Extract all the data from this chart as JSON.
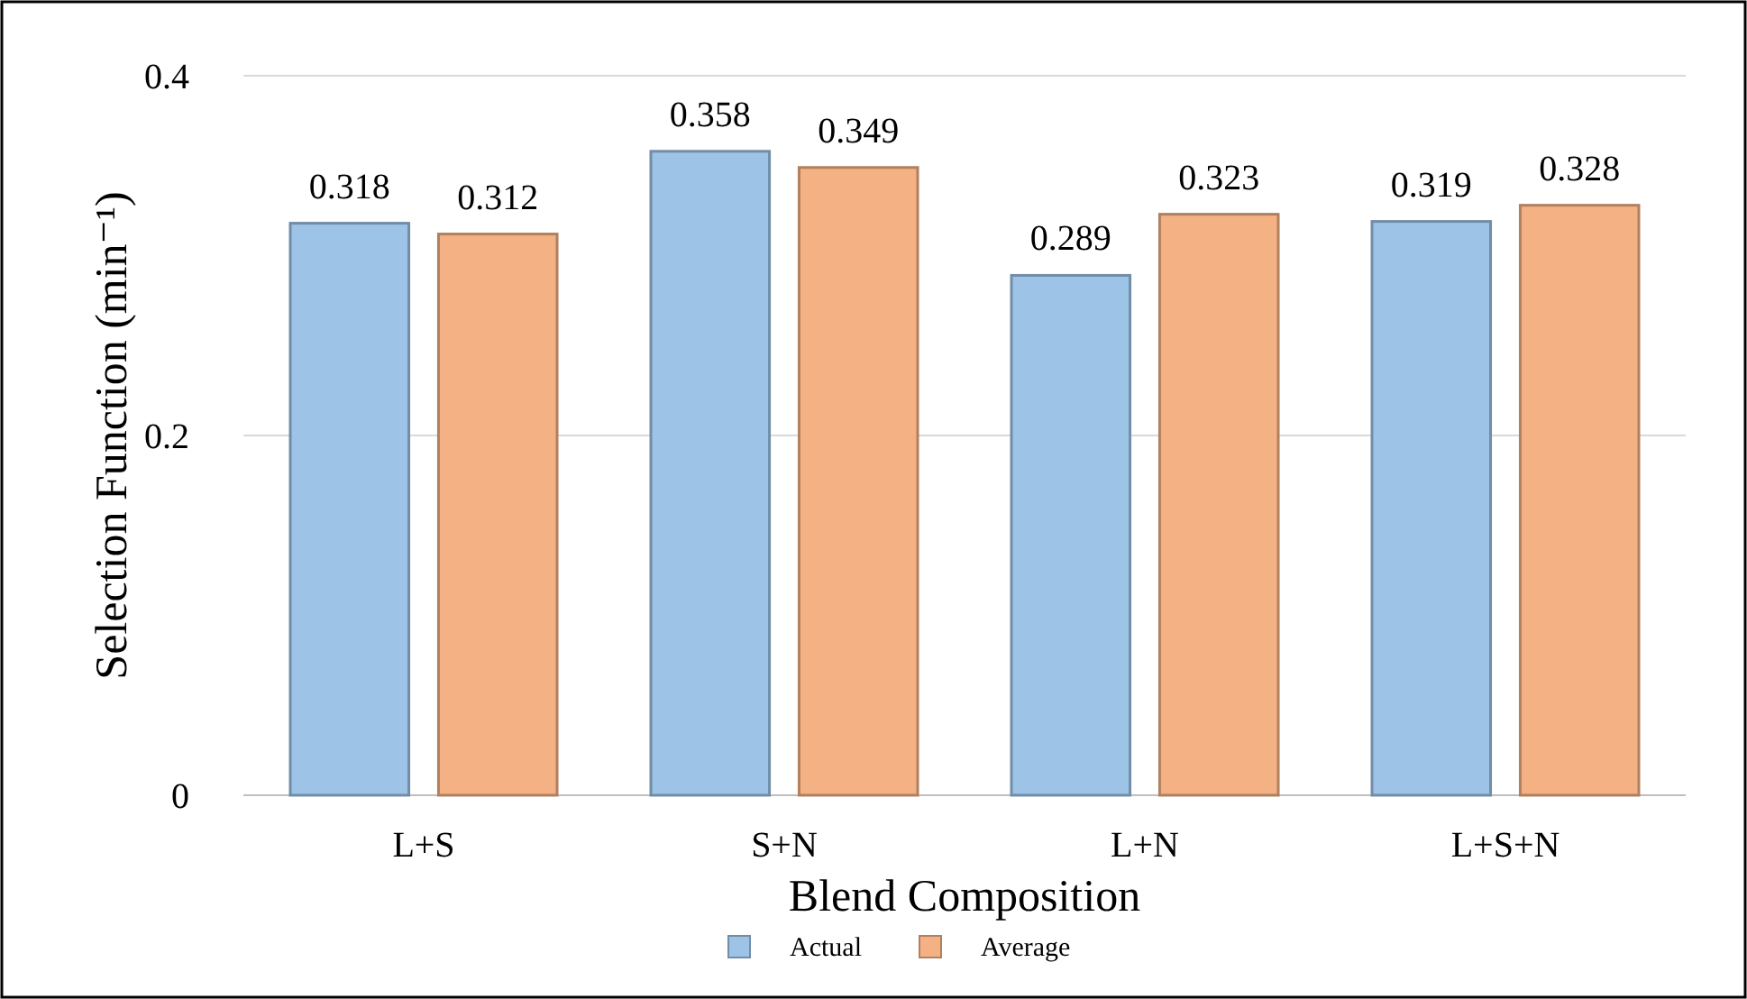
{
  "chart_data": {
    "type": "bar",
    "xlabel": "Blend Composition",
    "ylabel": "Selection Function (min⁻¹)",
    "categories": [
      "L+S",
      "S+N",
      "L+N",
      "L+S+N"
    ],
    "series": [
      {
        "name": "Actual",
        "color": "#9dc3e6",
        "values": [
          0.318,
          0.358,
          0.289,
          0.319
        ]
      },
      {
        "name": "Average",
        "color": "#f4b183",
        "values": [
          0.312,
          0.349,
          0.323,
          0.328
        ]
      }
    ],
    "ylim": [
      0,
      0.4
    ],
    "yticks": [
      0,
      0.2,
      0.4
    ],
    "grid": "y",
    "data_labels": true,
    "legend": "bottom"
  }
}
